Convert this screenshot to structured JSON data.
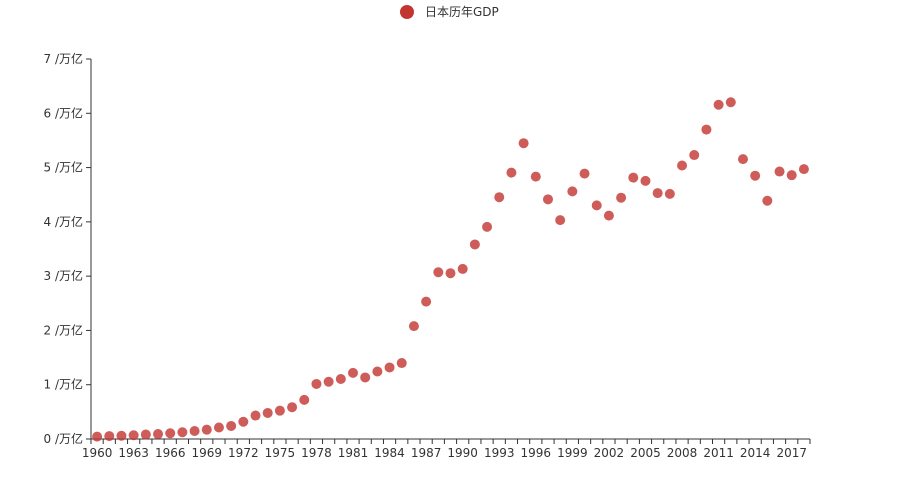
{
  "chart_data": {
    "type": "scatter",
    "title": "",
    "legend": {
      "label": "日本历年GDP",
      "position": "top-center"
    },
    "series": [
      {
        "name": "日本历年GDP",
        "color": "#c23531",
        "x": [
          1960,
          1961,
          1962,
          1963,
          1964,
          1965,
          1966,
          1967,
          1968,
          1969,
          1970,
          1971,
          1972,
          1973,
          1974,
          1975,
          1976,
          1977,
          1978,
          1979,
          1980,
          1981,
          1982,
          1983,
          1984,
          1985,
          1986,
          1987,
          1988,
          1989,
          1990,
          1991,
          1992,
          1993,
          1994,
          1995,
          1996,
          1997,
          1998,
          1999,
          2000,
          2001,
          2002,
          2003,
          2004,
          2005,
          2006,
          2007,
          2008,
          2009,
          2010,
          2011,
          2012,
          2013,
          2014,
          2015,
          2016,
          2017,
          2018
        ],
        "values": [
          0.044,
          0.054,
          0.06,
          0.069,
          0.082,
          0.091,
          0.106,
          0.124,
          0.147,
          0.172,
          0.212,
          0.24,
          0.318,
          0.432,
          0.48,
          0.522,
          0.586,
          0.721,
          1.014,
          1.055,
          1.105,
          1.218,
          1.134,
          1.243,
          1.318,
          1.399,
          2.079,
          2.531,
          3.072,
          3.054,
          3.133,
          3.584,
          3.908,
          4.454,
          4.907,
          5.449,
          4.833,
          4.415,
          4.032,
          4.562,
          4.888,
          4.304,
          4.115,
          4.445,
          4.815,
          4.755,
          4.53,
          4.515,
          5.038,
          5.231,
          5.7,
          6.157,
          6.203,
          5.156,
          4.85,
          4.389,
          4.927,
          4.86,
          4.971
        ]
      }
    ],
    "x_axis": {
      "tick_labels": [
        "1960",
        "1963",
        "1966",
        "1969",
        "1972",
        "1975",
        "1978",
        "1981",
        "1984",
        "1987",
        "1990",
        "1993",
        "1996",
        "1999",
        "2002",
        "2005",
        "2008",
        "2011",
        "2014",
        "2017"
      ],
      "range": [
        1960,
        2018
      ]
    },
    "y_axis": {
      "range": [
        0,
        7
      ],
      "unit": "/万亿",
      "tick_labels": [
        "0 /万亿",
        "1 /万亿",
        "2 /万亿",
        "3 /万亿",
        "4 /万亿",
        "5 /万亿",
        "6 /万亿",
        "7 /万亿"
      ],
      "tick_values": [
        0,
        1,
        2,
        3,
        4,
        5,
        6,
        7
      ]
    }
  }
}
